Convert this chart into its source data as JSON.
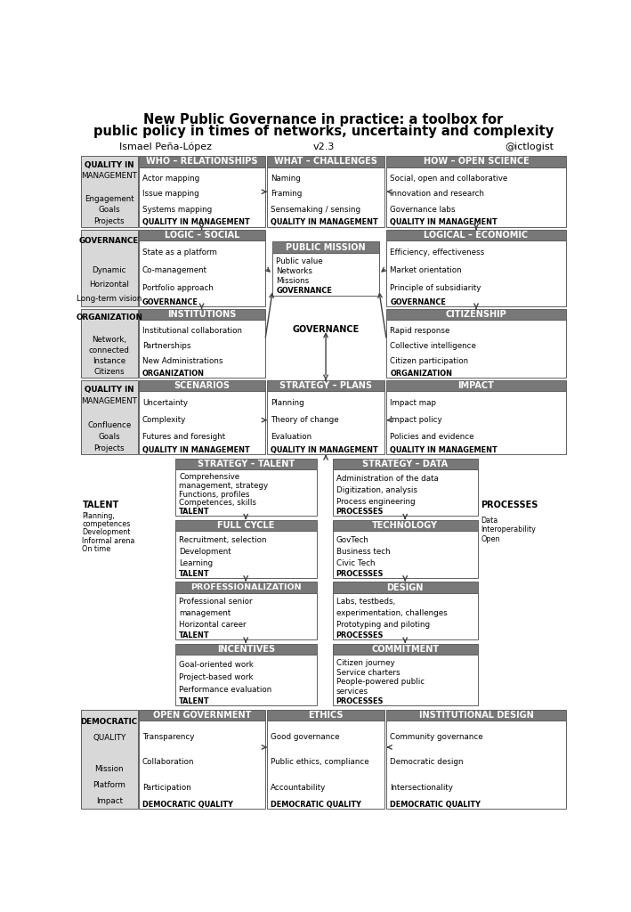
{
  "title_line1": "New Public Governance in practice: a toolbox for",
  "title_line2": "public policy in times of networks, uncertainty and complexity",
  "subtitle_left": "Ismael Peña-López",
  "subtitle_center": "v2.3",
  "subtitle_right": "@ictlogist",
  "gray_header": "#787878",
  "light_gray": "#d8d8d8",
  "bg": "#ffffff",
  "border": "#606060"
}
